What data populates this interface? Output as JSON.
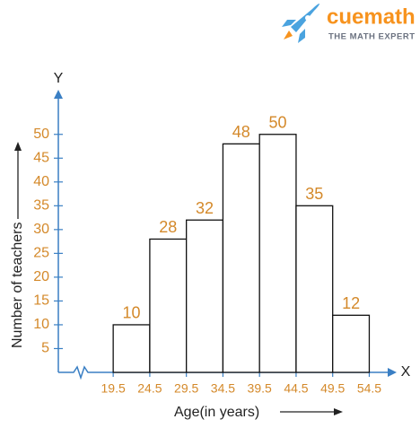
{
  "logo": {
    "name": "cuemath",
    "tagline": "THE MATH EXPERT"
  },
  "chart_data": {
    "type": "histogram",
    "bins": [
      19.5,
      24.5,
      29.5,
      34.5,
      39.5,
      44.5,
      49.5,
      54.5
    ],
    "values": [
      10,
      28,
      32,
      48,
      50,
      35,
      12
    ],
    "xticks": [
      19.5,
      24.5,
      29.5,
      34.5,
      39.5,
      44.5,
      49.5,
      54.5
    ],
    "yticks": [
      5,
      10,
      15,
      20,
      25,
      30,
      35,
      40,
      45,
      50
    ],
    "xlim": [
      12,
      58
    ],
    "ylim": [
      0,
      59
    ],
    "x_label": "Age(in years)",
    "y_label": "Number of teachers",
    "x_axis_name": "X",
    "y_axis_name": "Y",
    "bar_color": "#ffffff",
    "edge_color": "#111111",
    "axis_color": "#3a7fc4",
    "label_color": "#d4892a",
    "axis_break": true
  }
}
